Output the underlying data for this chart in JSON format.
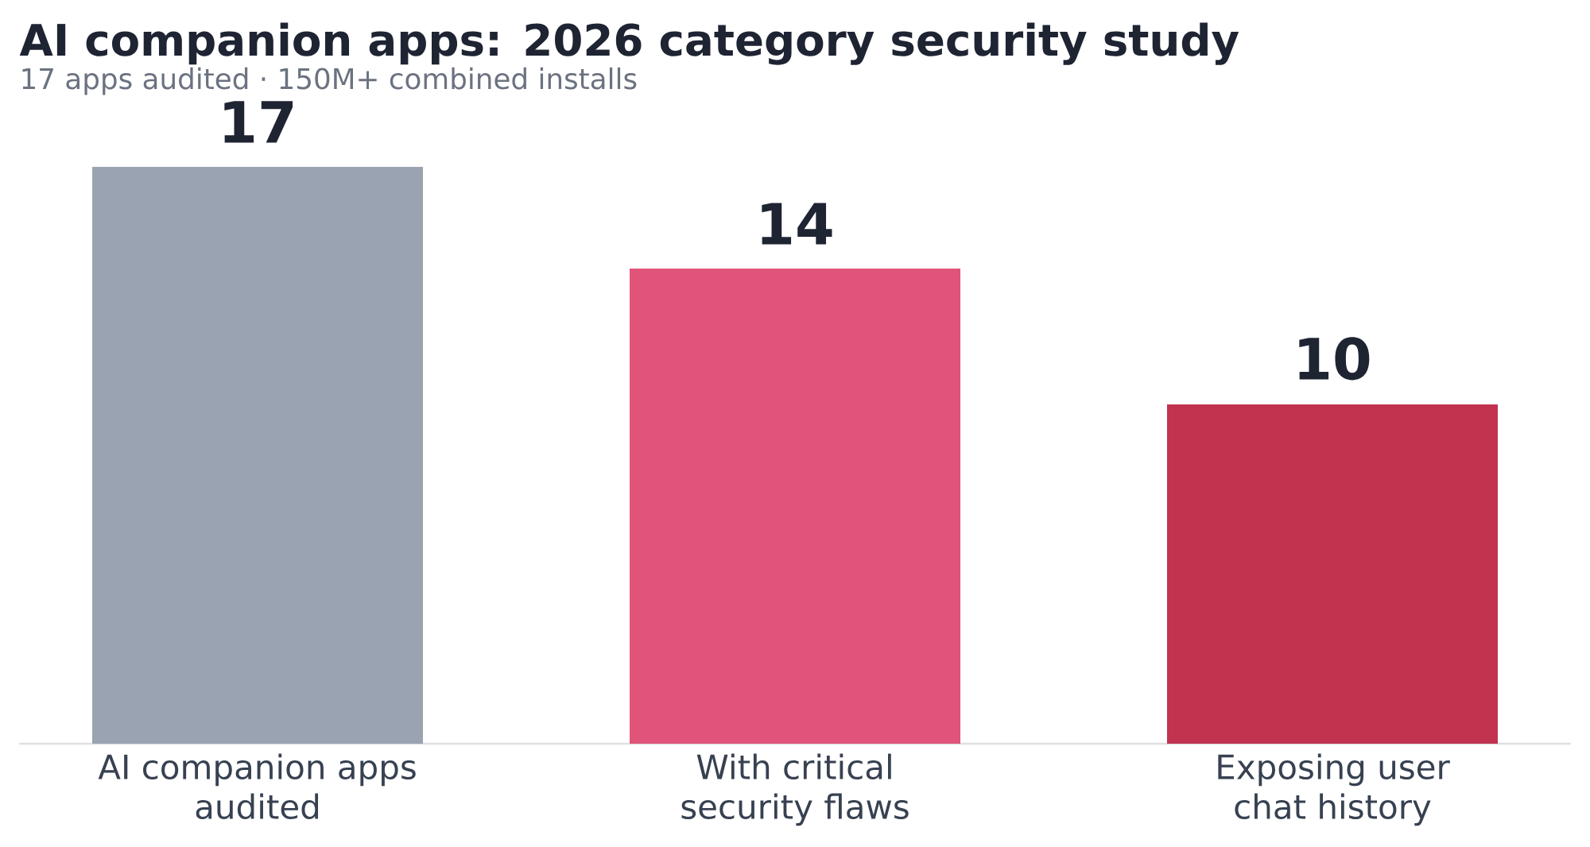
{
  "chart_data": {
    "type": "bar",
    "title": "AI companion apps: 2026 category security study",
    "subtitle": "17 apps audited · 150M+ combined installs",
    "categories": [
      "AI companion apps audited",
      "With critical security flaws",
      "Exposing user chat history"
    ],
    "values": [
      17,
      14,
      10
    ],
    "colors": [
      "#9aa3b1",
      "#e05479",
      "#c1334f"
    ],
    "data_labels": true
  }
}
